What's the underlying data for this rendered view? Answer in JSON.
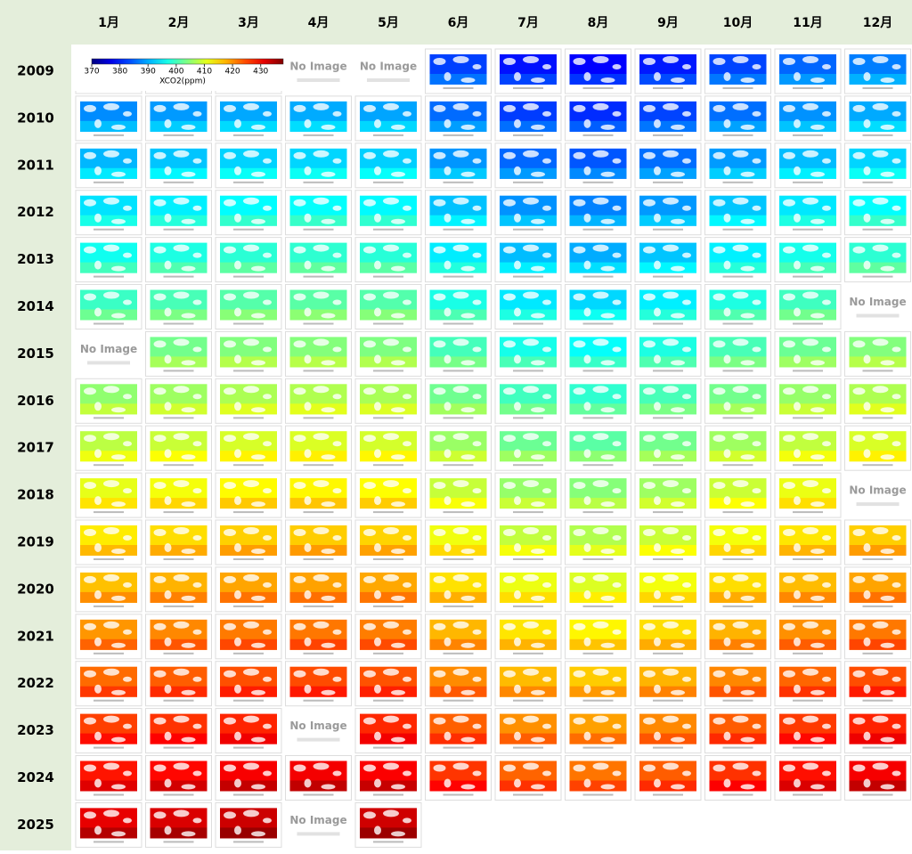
{
  "header": {
    "months": [
      "1月",
      "2月",
      "3月",
      "4月",
      "5月",
      "6月",
      "7月",
      "8月",
      "9月",
      "10月",
      "11月",
      "12月"
    ]
  },
  "colorbar": {
    "label": "XCO2(ppm)",
    "ticks": [
      370,
      380,
      390,
      400,
      410,
      420,
      430
    ],
    "lim": [
      370,
      438
    ]
  },
  "rows": [
    {
      "year": "2009",
      "cells": [
        null,
        null,
        null,
        "No Image",
        "No Image",
        null,
        null,
        null,
        null,
        null,
        null,
        null
      ]
    },
    {
      "year": "2010",
      "cells": [
        null,
        null,
        null,
        null,
        null,
        null,
        null,
        null,
        null,
        null,
        null,
        null
      ]
    },
    {
      "year": "2011",
      "cells": [
        null,
        null,
        null,
        null,
        null,
        null,
        null,
        null,
        null,
        null,
        null,
        null
      ]
    },
    {
      "year": "2012",
      "cells": [
        null,
        null,
        null,
        null,
        null,
        null,
        null,
        null,
        null,
        null,
        null,
        null
      ]
    },
    {
      "year": "2013",
      "cells": [
        null,
        null,
        null,
        null,
        null,
        null,
        null,
        null,
        null,
        null,
        null,
        null
      ]
    },
    {
      "year": "2014",
      "cells": [
        null,
        null,
        null,
        null,
        null,
        null,
        null,
        null,
        null,
        null,
        null,
        "No Image"
      ]
    },
    {
      "year": "2015",
      "cells": [
        "No Image",
        null,
        null,
        null,
        null,
        null,
        null,
        null,
        null,
        null,
        null,
        null
      ]
    },
    {
      "year": "2016",
      "cells": [
        null,
        null,
        null,
        null,
        null,
        null,
        null,
        null,
        null,
        null,
        null,
        null
      ]
    },
    {
      "year": "2017",
      "cells": [
        null,
        null,
        null,
        null,
        null,
        null,
        null,
        null,
        null,
        null,
        null,
        null
      ]
    },
    {
      "year": "2018",
      "cells": [
        null,
        null,
        null,
        null,
        null,
        null,
        null,
        null,
        null,
        null,
        null,
        "No Image"
      ]
    },
    {
      "year": "2019",
      "cells": [
        null,
        null,
        null,
        null,
        null,
        null,
        null,
        null,
        null,
        null,
        null,
        null
      ]
    },
    {
      "year": "2020",
      "cells": [
        null,
        null,
        null,
        null,
        null,
        null,
        null,
        null,
        null,
        null,
        null,
        null
      ]
    },
    {
      "year": "2021",
      "cells": [
        null,
        null,
        null,
        null,
        null,
        null,
        null,
        null,
        null,
        null,
        null,
        null
      ]
    },
    {
      "year": "2022",
      "cells": [
        null,
        null,
        null,
        null,
        null,
        null,
        null,
        null,
        null,
        null,
        null,
        null
      ]
    },
    {
      "year": "2023",
      "cells": [
        null,
        null,
        null,
        "No Image",
        null,
        null,
        null,
        null,
        null,
        null,
        null,
        null
      ]
    },
    {
      "year": "2024",
      "cells": [
        null,
        null,
        null,
        null,
        null,
        null,
        null,
        null,
        null,
        null,
        null,
        null
      ]
    },
    {
      "year": "2025",
      "cells": [
        null,
        null,
        null,
        "No Image",
        null
      ]
    }
  ]
}
